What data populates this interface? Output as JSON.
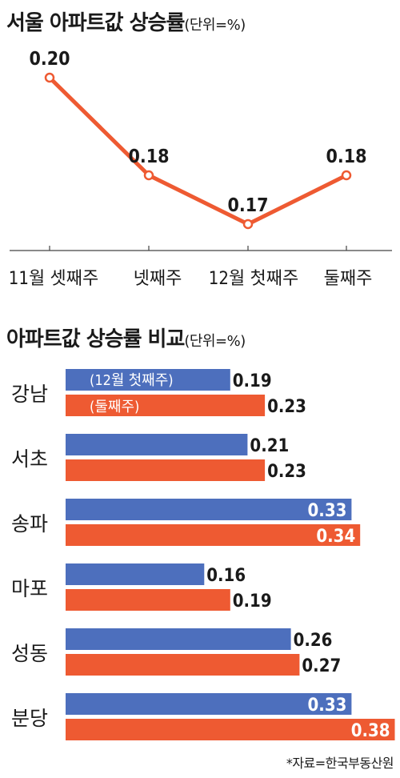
{
  "titles": {
    "line_main": "서울 아파트값 상승률",
    "line_unit": "(단위=%)",
    "bar_main": "아파트값 상승률 비교",
    "bar_unit": "(단위=%)"
  },
  "source": "*자료=한국부동산원",
  "colors": {
    "orange": "#ee5a32",
    "blue": "#4d6fbd",
    "axis": "#444444",
    "text": "#1a1a1a"
  },
  "chart_data": [
    {
      "type": "line",
      "title": "서울 아파트값 상승률",
      "unit": "(단위=%)",
      "categories": [
        "11월 셋째주",
        "넷째주",
        "12월 첫째주",
        "둘째주"
      ],
      "values": [
        0.2,
        0.18,
        0.17,
        0.18
      ],
      "value_labels": [
        "0.20",
        "0.18",
        "0.17",
        "0.18"
      ],
      "color": "#ee5a32"
    },
    {
      "type": "bar",
      "orientation": "horizontal",
      "title": "아파트값 상승률 비교",
      "unit": "(단위=%)",
      "categories": [
        "강남",
        "서초",
        "송파",
        "마포",
        "성동",
        "분당"
      ],
      "series": [
        {
          "name": "(12월 첫째주)",
          "color": "#4d6fbd",
          "values": [
            0.19,
            0.21,
            0.33,
            0.16,
            0.26,
            0.33
          ],
          "labels": [
            "0.19",
            "0.21",
            "0.33",
            "0.16",
            "0.26",
            "0.33"
          ]
        },
        {
          "name": "(둘째주)",
          "color": "#ee5a32",
          "values": [
            0.23,
            0.23,
            0.34,
            0.19,
            0.27,
            0.38
          ],
          "labels": [
            "0.23",
            "0.23",
            "0.34",
            "0.19",
            "0.27",
            "0.38"
          ]
        }
      ]
    }
  ]
}
